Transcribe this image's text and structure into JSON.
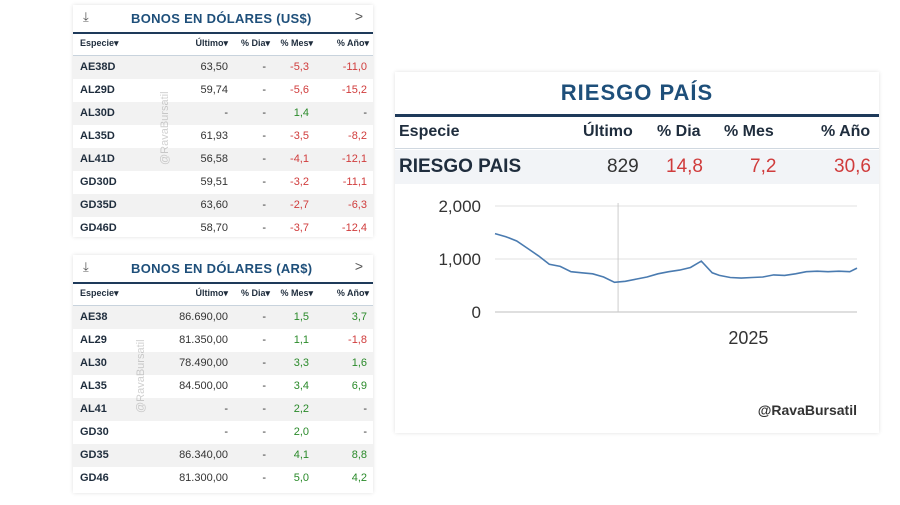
{
  "usd_table": {
    "title": "BONOS EN DÓLARES (US$)",
    "download_icon": "⤓",
    "next_icon": ">",
    "watermark": "@RavaBursatil",
    "headers": [
      "Especie▾",
      "Último▾",
      "% Dia▾",
      "% Mes▾",
      "% Año▾"
    ],
    "rows": [
      {
        "name": "AE38D",
        "ultimo": "63,50",
        "dia": "-",
        "mes": "-5,3",
        "ano": "-11,0"
      },
      {
        "name": "AL29D",
        "ultimo": "59,74",
        "dia": "-",
        "mes": "-5,6",
        "ano": "-15,2"
      },
      {
        "name": "AL30D",
        "ultimo": "-",
        "dia": "-",
        "mes": "1,4",
        "ano": "-"
      },
      {
        "name": "AL35D",
        "ultimo": "61,93",
        "dia": "-",
        "mes": "-3,5",
        "ano": "-8,2"
      },
      {
        "name": "AL41D",
        "ultimo": "56,58",
        "dia": "-",
        "mes": "-4,1",
        "ano": "-12,1"
      },
      {
        "name": "GD30D",
        "ultimo": "59,51",
        "dia": "-",
        "mes": "-3,2",
        "ano": "-11,1"
      },
      {
        "name": "GD35D",
        "ultimo": "63,60",
        "dia": "-",
        "mes": "-2,7",
        "ano": "-6,3"
      },
      {
        "name": "GD46D",
        "ultimo": "58,70",
        "dia": "-",
        "mes": "-3,7",
        "ano": "-12,4"
      }
    ]
  },
  "ars_table": {
    "title": "BONOS EN DÓLARES (AR$)",
    "download_icon": "⤓",
    "next_icon": ">",
    "watermark": "@RavaBursatil",
    "headers": [
      "Especie▾",
      "Último▾",
      "% Dia▾",
      "% Mes▾",
      "% Año▾"
    ],
    "rows": [
      {
        "name": "AE38",
        "ultimo": "86.690,00",
        "dia": "-",
        "mes": "1,5",
        "ano": "3,7"
      },
      {
        "name": "AL29",
        "ultimo": "81.350,00",
        "dia": "-",
        "mes": "1,1",
        "ano": "-1,8"
      },
      {
        "name": "AL30",
        "ultimo": "78.490,00",
        "dia": "-",
        "mes": "3,3",
        "ano": "1,6"
      },
      {
        "name": "AL35",
        "ultimo": "84.500,00",
        "dia": "-",
        "mes": "3,4",
        "ano": "6,9"
      },
      {
        "name": "AL41",
        "ultimo": "-",
        "dia": "-",
        "mes": "2,2",
        "ano": "-"
      },
      {
        "name": "GD30",
        "ultimo": "-",
        "dia": "-",
        "mes": "2,0",
        "ano": "-"
      },
      {
        "name": "GD35",
        "ultimo": "86.340,00",
        "dia": "-",
        "mes": "4,1",
        "ano": "8,8"
      },
      {
        "name": "GD46",
        "ultimo": "81.300,00",
        "dia": "-",
        "mes": "5,0",
        "ano": "4,2"
      }
    ]
  },
  "riesgo": {
    "title": "RIESGO PAÍS",
    "headers": [
      "Especie",
      "Último",
      "% Dia",
      "% Mes",
      "% Año"
    ],
    "row": {
      "name": "RIESGO PAIS",
      "ultimo": "829",
      "dia": "14,8",
      "mes": "7,2",
      "ano": "30,6"
    },
    "credit": "@RavaBursatil"
  },
  "colors": {
    "negative": "#d03c3c",
    "positive": "#2a8a2a",
    "line": "#4a7bb0",
    "accent": "#1e4f7a"
  },
  "chart_data": {
    "type": "line",
    "title": "",
    "xlabel": "",
    "ylabel": "",
    "ylim": [
      0,
      2000
    ],
    "y_ticks": [
      {
        "value": 0,
        "label": "0"
      },
      {
        "value": 1000,
        "label": "1,000"
      },
      {
        "value": 2000,
        "label": "2,000"
      }
    ],
    "x_ticks": [
      {
        "value": 0.7,
        "label": "2025"
      }
    ],
    "x_divider": 0.34,
    "grid": true,
    "series": [
      {
        "x": [
          0.0,
          0.03,
          0.06,
          0.09,
          0.12,
          0.15,
          0.18,
          0.21,
          0.24,
          0.27,
          0.3,
          0.33,
          0.36,
          0.39,
          0.42,
          0.45,
          0.48,
          0.51,
          0.54,
          0.57,
          0.6,
          0.62,
          0.65,
          0.68,
          0.71,
          0.74,
          0.77,
          0.8,
          0.83,
          0.86,
          0.89,
          0.92,
          0.95,
          0.98,
          1.0
        ],
        "y": [
          1480,
          1420,
          1340,
          1200,
          1060,
          900,
          860,
          760,
          740,
          720,
          660,
          560,
          580,
          620,
          660,
          720,
          760,
          790,
          840,
          960,
          740,
          690,
          650,
          640,
          650,
          660,
          700,
          690,
          720,
          760,
          770,
          760,
          770,
          760,
          829
        ]
      }
    ]
  }
}
